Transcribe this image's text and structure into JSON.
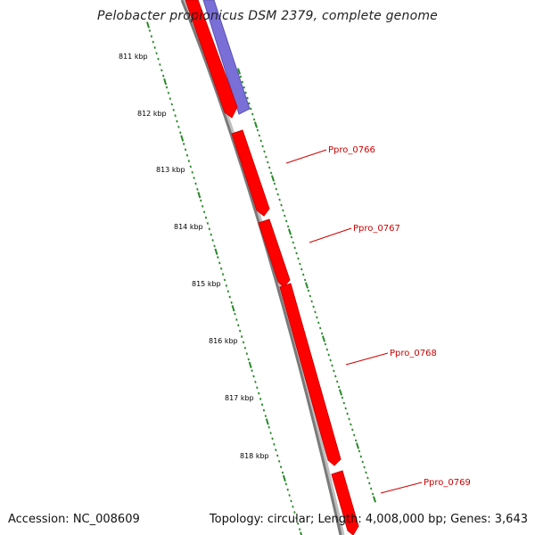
{
  "title": "Pelobacter propionicus DSM 2379, complete genome",
  "footer": {
    "accession": "Accession: NC_008609",
    "stats": "Topology: circular; Length: 4,008,000 bp; Genes: 3,643"
  },
  "colors": {
    "forward_gene": "#ff0000",
    "reverse_gene": "#7a6fd6",
    "backbone": "#888888",
    "tick": "#2a8a2a",
    "label": "#d00000"
  },
  "kbp_labels": [
    "811 kbp",
    "812 kbp",
    "813 kbp",
    "814 kbp",
    "815 kbp",
    "816 kbp",
    "817 kbp",
    "818 kbp"
  ],
  "genes": [
    {
      "name": "Ppro_0766"
    },
    {
      "name": "Ppro_0767"
    },
    {
      "name": "Ppro_0768"
    },
    {
      "name": "Ppro_0769"
    }
  ]
}
